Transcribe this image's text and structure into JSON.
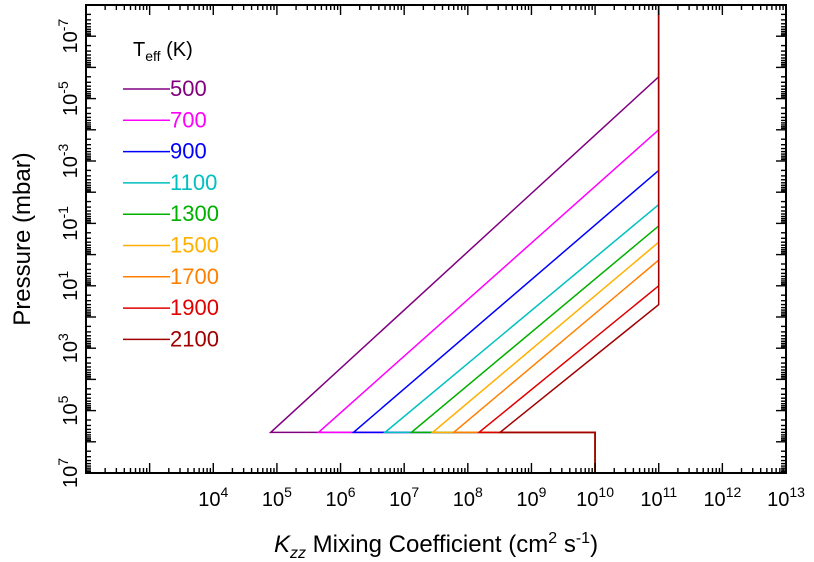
{
  "chart_data": {
    "type": "line",
    "xlabel": {
      "italic": "K",
      "sub": "zz",
      "rest": " Mixing Coefficient (cm",
      "sup1": "2",
      "mid": " s",
      "sup2": "-1",
      "close": ")"
    },
    "ylabel": "Pressure (mbar)",
    "x_scale": "log",
    "y_scale": "log",
    "y_inverted": true,
    "xlim": [
      100,
      10000000000000.0
    ],
    "ylim": [
      10000000.0,
      1e-08
    ],
    "x_ticks": [
      {
        "exp": "4",
        "value": 10000.0
      },
      {
        "exp": "5",
        "value": 100000.0
      },
      {
        "exp": "6",
        "value": 1000000.0
      },
      {
        "exp": "7",
        "value": 10000000.0
      },
      {
        "exp": "8",
        "value": 100000000.0
      },
      {
        "exp": "9",
        "value": 1000000000.0
      },
      {
        "exp": "10",
        "value": 10000000000.0
      },
      {
        "exp": "11",
        "value": 100000000000.0
      },
      {
        "exp": "12",
        "value": 1000000000000.0
      },
      {
        "exp": "13",
        "value": 10000000000000.0
      }
    ],
    "y_ticks": [
      {
        "exp": "-7",
        "value": 1e-07
      },
      {
        "exp": "-5",
        "value": 1e-05
      },
      {
        "exp": "-3",
        "value": 0.001
      },
      {
        "exp": "-1",
        "value": 0.1
      },
      {
        "exp": "1",
        "value": 10
      },
      {
        "exp": "3",
        "value": 1000.0
      },
      {
        "exp": "5",
        "value": 100000.0
      },
      {
        "exp": "7",
        "value": 10000000.0
      }
    ],
    "tick_base": "10",
    "legend": {
      "title_main": "T",
      "title_sub": "eff",
      "title_rest": " (K)",
      "placement": "top-left"
    },
    "series": [
      {
        "name": "500",
        "color": "#800080",
        "points": [
          [
            100000000000.0,
            1e-08
          ],
          [
            100000000000.0,
            2e-06
          ],
          [
            80000.0,
            500000.0
          ],
          [
            10000000000.0,
            500000.0
          ],
          [
            10000000000.0,
            10000000.0
          ]
        ]
      },
      {
        "name": "700",
        "color": "#ff00ff",
        "points": [
          [
            100000000000.0,
            1e-08
          ],
          [
            100000000000.0,
            0.0001
          ],
          [
            450000.0,
            500000.0
          ],
          [
            10000000000.0,
            500000.0
          ],
          [
            10000000000.0,
            10000000.0
          ]
        ]
      },
      {
        "name": "900",
        "color": "#0000ff",
        "points": [
          [
            100000000000.0,
            1e-08
          ],
          [
            100000000000.0,
            0.002
          ],
          [
            1600000.0,
            500000.0
          ],
          [
            10000000000.0,
            500000.0
          ],
          [
            10000000000.0,
            10000000.0
          ]
        ]
      },
      {
        "name": "1100",
        "color": "#00c0c0",
        "points": [
          [
            100000000000.0,
            1e-08
          ],
          [
            100000000000.0,
            0.025
          ],
          [
            5000000.0,
            500000.0
          ],
          [
            10000000000.0,
            500000.0
          ],
          [
            10000000000.0,
            10000000.0
          ]
        ]
      },
      {
        "name": "1300",
        "color": "#00b000",
        "points": [
          [
            100000000000.0,
            1e-08
          ],
          [
            100000000000.0,
            0.12
          ],
          [
            13000000.0,
            500000.0
          ],
          [
            10000000000.0,
            500000.0
          ],
          [
            10000000000.0,
            10000000.0
          ]
        ]
      },
      {
        "name": "1500",
        "color": "#ffb000",
        "points": [
          [
            100000000000.0,
            1e-08
          ],
          [
            100000000000.0,
            0.4
          ],
          [
            28000000.0,
            500000.0
          ],
          [
            10000000000.0,
            500000.0
          ],
          [
            10000000000.0,
            10000000.0
          ]
        ]
      },
      {
        "name": "1700",
        "color": "#ff8000",
        "points": [
          [
            100000000000.0,
            1e-08
          ],
          [
            100000000000.0,
            1.5
          ],
          [
            60000000.0,
            500000.0
          ],
          [
            10000000000.0,
            500000.0
          ],
          [
            10000000000.0,
            10000000.0
          ]
        ]
      },
      {
        "name": "1900",
        "color": "#e00000",
        "points": [
          [
            100000000000.0,
            1e-08
          ],
          [
            100000000000.0,
            10.0
          ],
          [
            150000000.0,
            500000.0
          ],
          [
            10000000000.0,
            500000.0
          ],
          [
            10000000000.0,
            10000000.0
          ]
        ]
      },
      {
        "name": "2100",
        "color": "#a00000",
        "points": [
          [
            100000000000.0,
            1e-08
          ],
          [
            100000000000.0,
            40.0
          ],
          [
            320000000.0,
            500000.0
          ],
          [
            10000000000.0,
            500000.0
          ],
          [
            10000000000.0,
            10000000.0
          ]
        ]
      }
    ]
  }
}
